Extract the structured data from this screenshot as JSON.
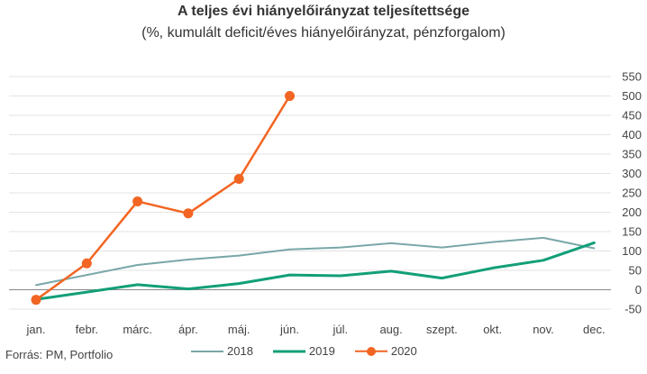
{
  "chart_data": {
    "type": "line",
    "title": "A teljes évi hiányelőirányzat teljesítettsége",
    "subtitle": "(%, kumulált deficit/éves hiányelőirányzat, pénzforgalom)",
    "categories": [
      "jan.",
      "febr.",
      "márc.",
      "ápr.",
      "máj.",
      "jún.",
      "júl.",
      "aug.",
      "szept.",
      "okt.",
      "nov.",
      "dec."
    ],
    "y_ticks": [
      -50,
      0,
      50,
      100,
      150,
      200,
      250,
      300,
      350,
      400,
      450,
      500,
      550
    ],
    "ylim": [
      -50,
      550
    ],
    "grid": true,
    "legend_position": "bottom",
    "series": [
      {
        "name": "2018",
        "color": "#7aa7a9",
        "markers": false,
        "values": [
          12,
          38,
          64,
          78,
          88,
          104,
          109,
          120,
          109,
          123,
          134,
          107
        ]
      },
      {
        "name": "2019",
        "color": "#129f78",
        "markers": false,
        "values": [
          -25,
          -6,
          13,
          2,
          16,
          38,
          36,
          48,
          30,
          56,
          76,
          121
        ]
      },
      {
        "name": "2020",
        "color": "#f26522",
        "markers": true,
        "values": [
          -26,
          68,
          228,
          197,
          286,
          500,
          null,
          null,
          null,
          null,
          null,
          null
        ]
      }
    ]
  },
  "source": "Forrás: PM, Portfolio"
}
